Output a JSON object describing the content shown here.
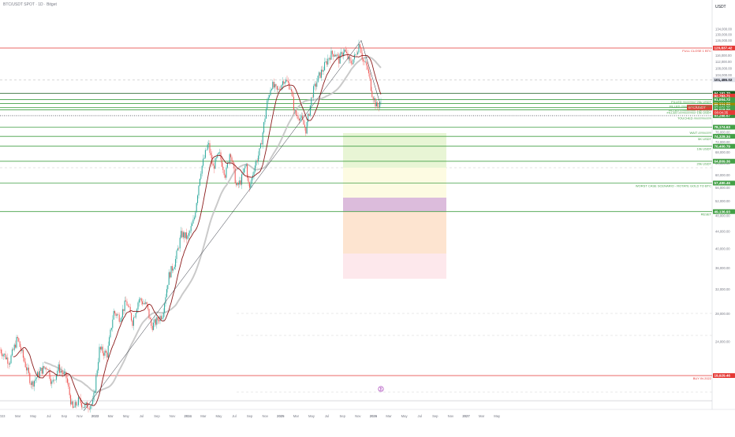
{
  "header": {
    "symbol": "BTC/USDT SPOT · 1D · Bitget",
    "currency": "USDT"
  },
  "chart_data": {
    "type": "candlestick",
    "y_scale": "log",
    "ylim": [
      14800,
      135000
    ],
    "y_ticks": [
      {
        "v": 134000,
        "label": "134,000.00"
      },
      {
        "v": 130000,
        "label": "130,000.00"
      },
      {
        "v": 126000,
        "label": "126,000.00"
      },
      {
        "v": 120000,
        "label": "120,000.00"
      },
      {
        "v": 116000,
        "label": "116,000.00"
      },
      {
        "v": 112000,
        "label": "112,000.00"
      },
      {
        "v": 108000,
        "label": "108,000.00"
      },
      {
        "v": 104000,
        "label": "104,000.00"
      },
      {
        "v": 88000,
        "label": "88,000.00"
      },
      {
        "v": 84000,
        "label": "84,000.00"
      },
      {
        "v": 76000,
        "label": "76,000.00"
      },
      {
        "v": 72000,
        "label": "72,000.00"
      },
      {
        "v": 68000,
        "label": "68,000.00"
      },
      {
        "v": 64000,
        "label": "64,000.00"
      },
      {
        "v": 60000,
        "label": "60,000.00"
      },
      {
        "v": 56000,
        "label": "56,000.00"
      },
      {
        "v": 52000,
        "label": "52,000.00"
      },
      {
        "v": 48000,
        "label": "48,000.00"
      },
      {
        "v": 44000,
        "label": "44,000.00"
      },
      {
        "v": 40000,
        "label": "40,000.00"
      },
      {
        "v": 36000,
        "label": "36,000.00"
      },
      {
        "v": 32000,
        "label": "32,000.00"
      },
      {
        "v": 28000,
        "label": "28,000.00"
      },
      {
        "v": 24000,
        "label": "24,000.00"
      },
      {
        "v": 20000,
        "label": "20,000.00"
      }
    ],
    "x_ticks": [
      "023",
      "Mar",
      "May",
      "Jul",
      "Sep",
      "Nov",
      "2023",
      "Mar",
      "May",
      "Jul",
      "Sep",
      "Nov",
      "2024",
      "Mar",
      "May",
      "Jul",
      "Sep",
      "Nov",
      "2025",
      "Mar",
      "May",
      "Jul",
      "Sep",
      "Nov",
      "2026",
      "Mar",
      "May",
      "Jul",
      "Sep",
      "Nov",
      "2027",
      "Mar",
      "May"
    ],
    "levels": [
      {
        "value": 120837.42,
        "label": "120,837.42",
        "text": "FULL CLOSE 1 BTC",
        "color": "#e53935",
        "solid": true
      },
      {
        "value": 101486.02,
        "label": "101,486.02",
        "text": "",
        "color": "#787b86",
        "dashed": true
      },
      {
        "value": 94192.7,
        "label": "94,192.70",
        "text": "",
        "color": "#1b5e20",
        "solid": true
      },
      {
        "value": 92783.71,
        "label": "92,783.71",
        "text": "",
        "color": "#e53935",
        "solid": false
      },
      {
        "value": 91004.72,
        "label": "91,004.72",
        "text": "FILLED /////////////// 25k USDT",
        "color": "#43a047",
        "solid": true
      },
      {
        "value": 89004.77,
        "label": "89,004.77",
        "text": "FILLED ///////////////// 15k USDT",
        "color": "#43a047",
        "solid": true
      },
      {
        "value": 88223.09,
        "label": "88,223.09",
        "text": "",
        "color": "#9e8a00",
        "solid": false
      },
      {
        "value": 87056.75,
        "label": "87,056.75",
        "text": "FILLED ////////////////// 15k USDT",
        "color": "#43a047",
        "solid": true
      },
      {
        "value": 86018.0,
        "label": "86,018.00",
        "text": "FILLED //////////////////// 15k USDT",
        "color": "#43a047",
        "solid": true
      },
      {
        "value": 83288.67,
        "label": "83,288.67",
        "text": "TOUCHED ////////////////////",
        "color": "#43a047",
        "dotted": true
      },
      {
        "value": 78174.63,
        "label": "78,174.63",
        "text": "",
        "color": "#43a047",
        "solid": true
      },
      {
        "value": 77000,
        "label": "",
        "text": "WAIT ///////////////",
        "color": "#43a047",
        "solid": false
      },
      {
        "value": 74328.34,
        "label": "74,328.34",
        "text": "5K USDT",
        "color": "#43a047",
        "solid": true
      },
      {
        "value": 70400.79,
        "label": "70,400.79",
        "text": "10k USDT",
        "color": "#43a047",
        "solid": true
      },
      {
        "value": 64809.36,
        "label": "64,809.36",
        "text": "20k USDT",
        "color": "#43a047",
        "solid": true
      },
      {
        "value": 57480.46,
        "label": "57,480.46",
        "text": "WORST CASE SCENARIO - ROTATE GOLD TO BTC",
        "color": "#43a047",
        "solid": true
      },
      {
        "value": 49136.93,
        "label": "49,136.93",
        "text": "RESET",
        "color": "#43a047",
        "solid": true
      },
      {
        "value": 19929.46,
        "label": "19,929.46",
        "text": "BUY IN 2022",
        "color": "#e53935",
        "solid": true
      }
    ],
    "current_price": {
      "label": "BTC/USDT",
      "value": "87,056.75",
      "countdown": "08:04:35"
    }
  }
}
